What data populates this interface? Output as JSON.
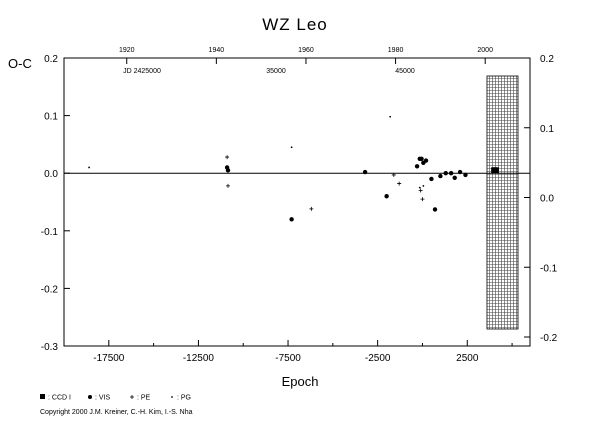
{
  "chart_data": {
    "type": "scatter",
    "title": "WZ Leo",
    "ylabel": "O-C",
    "xlabel": "Epoch",
    "x_ticks": [
      -17500,
      -12500,
      -7500,
      -2500,
      2500
    ],
    "x_tick_labels": [
      "-17500",
      "-12500",
      "-7500",
      "-2500",
      "2500"
    ],
    "xlim": [
      -20000,
      6000
    ],
    "ylim": [
      -0.3,
      0.2
    ],
    "y_ticks_left": [
      -0.3,
      -0.2,
      -0.1,
      0.0,
      0.1,
      0.2
    ],
    "y_tick_labels_left": [
      "-0.3",
      "-0.2",
      "-0.1",
      "0.0",
      "0.1",
      "0.2"
    ],
    "y_ticks_right": [
      -0.2,
      -0.1,
      0.0,
      0.1,
      0.2
    ],
    "y_tick_labels_right": [
      "-0.2",
      "-0.1",
      "0.0",
      "0.1",
      "0.2"
    ],
    "y2lim": [
      -0.2,
      0.2
    ],
    "top_year_ticks": [
      1920,
      1940,
      1960,
      1980,
      2000
    ],
    "top_year_labels": [
      "1920",
      "1940",
      "1960",
      "1980",
      "2000"
    ],
    "jd_labels": [
      "JD 2425000",
      "35000",
      "45000"
    ],
    "legend": [
      {
        "label": "CCD I",
        "symbol": "square"
      },
      {
        "label": "VIS",
        "symbol": "circle"
      },
      {
        "label": "PE",
        "symbol": "plus"
      },
      {
        "label": "PG",
        "symbol": "dot"
      }
    ],
    "series": [
      {
        "name": "CCD I",
        "symbol": "square",
        "points": [
          [
            4000,
            0.005
          ],
          [
            4100,
            0.005
          ]
        ]
      },
      {
        "name": "VIS",
        "symbol": "circle",
        "points": [
          [
            -10900,
            0.01
          ],
          [
            -10850,
            0.005
          ],
          [
            -7300,
            -0.08
          ],
          [
            -2000,
            -0.04
          ],
          [
            -3200,
            0.002
          ],
          [
            -300,
            0.012
          ],
          [
            -150,
            0.025
          ],
          [
            -50,
            0.025
          ],
          [
            50,
            0.018
          ],
          [
            200,
            0.022
          ],
          [
            500,
            -0.01
          ],
          [
            700,
            -0.063
          ],
          [
            1000,
            -0.005
          ],
          [
            1300,
            0.0
          ],
          [
            1600,
            0.0
          ],
          [
            1800,
            -0.008
          ],
          [
            2100,
            0.002
          ],
          [
            2400,
            -0.003
          ]
        ]
      },
      {
        "name": "PE",
        "symbol": "plus",
        "points": [
          [
            -10900,
            0.028
          ],
          [
            -10850,
            -0.022
          ],
          [
            -6200,
            -0.062
          ],
          [
            -1600,
            -0.003
          ],
          [
            -1300,
            -0.018
          ],
          [
            -100,
            -0.03
          ],
          [
            0,
            -0.045
          ]
        ]
      },
      {
        "name": "PG",
        "symbol": "dot",
        "points": [
          [
            -18600,
            0.01
          ],
          [
            -7300,
            0.045
          ],
          [
            -1800,
            0.098
          ],
          [
            -150,
            -0.025
          ],
          [
            50,
            -0.022
          ]
        ]
      }
    ],
    "shaded_region": {
      "x": [
        3600,
        6000
      ]
    }
  },
  "copyright": "Copyright 2000 J.M. Kreiner, C.-H. Kim, I.-S. Nha"
}
